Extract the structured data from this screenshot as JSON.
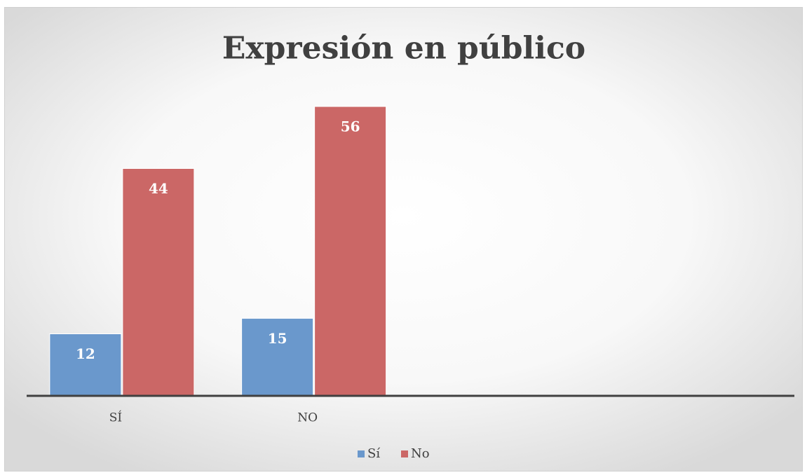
{
  "chart_data": {
    "type": "bar",
    "title": "Expresión en público",
    "categories": [
      "SÍ",
      "NO",
      null,
      null
    ],
    "series": [
      {
        "name": "Sí",
        "color": "#6a98cc",
        "values": [
          12,
          15,
          null,
          null
        ]
      },
      {
        "name": "No",
        "color": "#cb6766",
        "values": [
          44,
          56,
          null,
          null
        ]
      }
    ],
    "ylim": [
      0,
      60
    ],
    "legend": "bottom"
  }
}
